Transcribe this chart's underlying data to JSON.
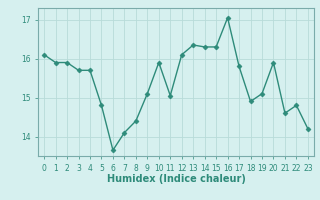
{
  "x": [
    0,
    1,
    2,
    3,
    4,
    5,
    6,
    7,
    8,
    9,
    10,
    11,
    12,
    13,
    14,
    15,
    16,
    17,
    18,
    19,
    20,
    21,
    22,
    23
  ],
  "y": [
    16.1,
    15.9,
    15.9,
    15.7,
    15.7,
    14.8,
    13.65,
    14.1,
    14.4,
    15.1,
    15.9,
    15.05,
    16.1,
    16.35,
    16.3,
    16.3,
    17.05,
    15.8,
    14.9,
    15.1,
    15.9,
    14.6,
    14.8,
    14.2
  ],
  "line_color": "#2e8b7a",
  "marker": "D",
  "marker_size": 2.5,
  "line_width": 1.0,
  "xlabel": "Humidex (Indice chaleur)",
  "xlim": [
    -0.5,
    23.5
  ],
  "ylim": [
    13.5,
    17.3
  ],
  "yticks": [
    14,
    15,
    16,
    17
  ],
  "xticks": [
    0,
    1,
    2,
    3,
    4,
    5,
    6,
    7,
    8,
    9,
    10,
    11,
    12,
    13,
    14,
    15,
    16,
    17,
    18,
    19,
    20,
    21,
    22,
    23
  ],
  "bg_color": "#d6f0ef",
  "grid_color": "#b8dbd9",
  "tick_fontsize": 5.5,
  "xlabel_fontsize": 7.0,
  "spine_color": "#7aabaa"
}
